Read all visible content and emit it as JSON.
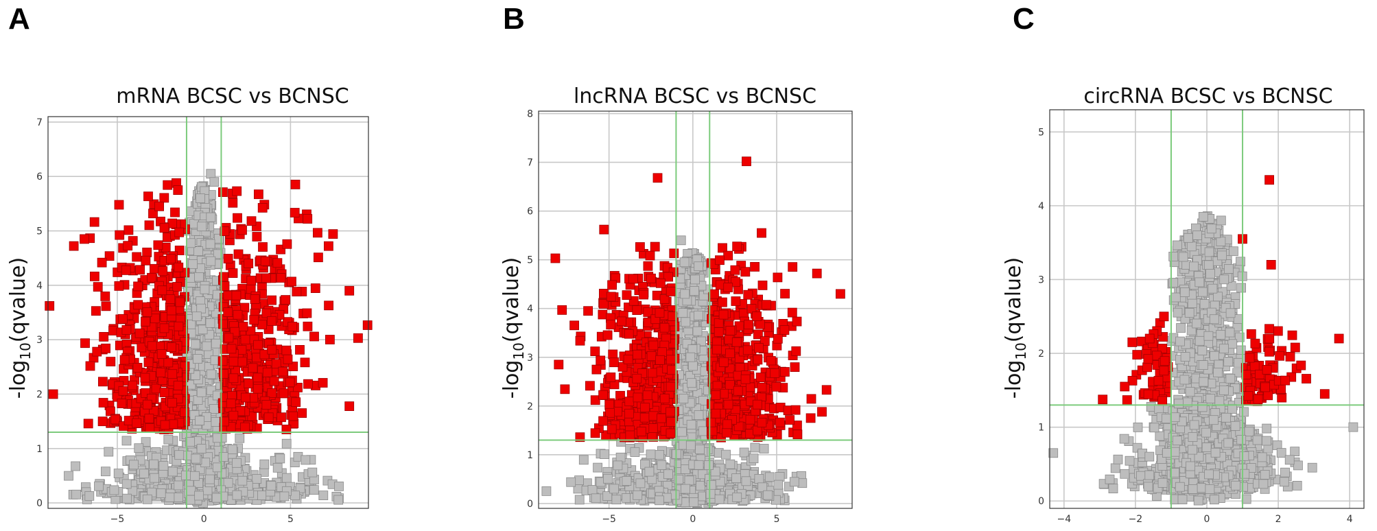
{
  "panels": [
    {
      "letter": "A"
    },
    {
      "letter": "B"
    },
    {
      "letter": "C"
    }
  ],
  "colors": {
    "significant": "#ee0000",
    "not_significant": "#bdbdbd",
    "threshold_lines": "#7ccb7c",
    "grid": "#c8c8c8"
  },
  "chart_data": [
    {
      "type": "scatter",
      "title": "mRNA BCSC vs BCNSC",
      "ylabel_prefix": "-log",
      "ylabel_sub": "10",
      "ylabel_suffix": "(qvalue)",
      "xlim": [
        -9,
        9.5
      ],
      "ylim": [
        -0.1,
        7.1
      ],
      "xticks": [
        -5,
        0,
        5
      ],
      "yticks": [
        0,
        1,
        2,
        3,
        4,
        5,
        6,
        7
      ],
      "grid": true,
      "fc_threshold": [
        -1,
        1
      ],
      "q_threshold": 1.3,
      "point_counts": {
        "significant": 850,
        "not_significant": 1100
      },
      "x_spread": 5.5,
      "y_max": 6.0,
      "highlighted_points": [
        {
          "x": -8.7,
          "y": 2.0,
          "sig": true
        },
        {
          "x": 8.9,
          "y": 3.03,
          "sig": true
        },
        {
          "x": -6.9,
          "y": 4.85,
          "sig": true
        },
        {
          "x": -4.9,
          "y": 5.48,
          "sig": true
        },
        {
          "x": -1.5,
          "y": 5.75,
          "sig": true
        },
        {
          "x": 1.9,
          "y": 5.73,
          "sig": true
        },
        {
          "x": 7.2,
          "y": 4.72,
          "sig": true
        },
        {
          "x": 8.4,
          "y": 3.9,
          "sig": true
        },
        {
          "x": 0.4,
          "y": 6.05,
          "sig": false
        },
        {
          "x": 0.6,
          "y": 5.9,
          "sig": false
        },
        {
          "x": 0.4,
          "y": 5.25,
          "sig": false
        }
      ]
    },
    {
      "type": "scatter",
      "title": "lncRNA BCSC vs BCNSC",
      "ylabel_prefix": "-log",
      "ylabel_sub": "10",
      "ylabel_suffix": "(qvalue)",
      "xlim": [
        -9.2,
        9.5
      ],
      "ylim": [
        -0.1,
        8.05
      ],
      "xticks": [
        -5,
        0,
        5
      ],
      "yticks": [
        0,
        1,
        2,
        3,
        4,
        5,
        6,
        7,
        8
      ],
      "grid": true,
      "fc_threshold": [
        -1,
        1
      ],
      "q_threshold": 1.3,
      "point_counts": {
        "significant": 900,
        "not_significant": 1100
      },
      "x_spread": 5.0,
      "y_max": 5.4,
      "highlighted_points": [
        {
          "x": -8.2,
          "y": 5.03,
          "sig": true
        },
        {
          "x": -8.0,
          "y": 2.85,
          "sig": true
        },
        {
          "x": -7.8,
          "y": 3.97,
          "sig": true
        },
        {
          "x": -2.1,
          "y": 6.68,
          "sig": true
        },
        {
          "x": 3.2,
          "y": 7.02,
          "sig": true
        },
        {
          "x": 8.8,
          "y": 4.3,
          "sig": true
        },
        {
          "x": 7.4,
          "y": 4.72,
          "sig": true
        },
        {
          "x": -5.3,
          "y": 5.62,
          "sig": true
        },
        {
          "x": 4.1,
          "y": 5.55,
          "sig": true
        },
        {
          "x": -0.7,
          "y": 5.4,
          "sig": false
        },
        {
          "x": -0.5,
          "y": 4.95,
          "sig": false
        }
      ]
    },
    {
      "type": "scatter",
      "title": "circRNA BCSC vs BCNSC",
      "ylabel_prefix": "-log",
      "ylabel_sub": "10",
      "ylabel_suffix": "(qvalue)",
      "xlim": [
        -4.4,
        4.4
      ],
      "ylim": [
        -0.1,
        5.3
      ],
      "xticks": [
        -4,
        -2,
        0,
        2,
        4
      ],
      "yticks": [
        0,
        1,
        2,
        3,
        4,
        5
      ],
      "grid": true,
      "fc_threshold": [
        -1,
        1
      ],
      "q_threshold": 1.3,
      "point_counts": {
        "significant": 150,
        "not_significant": 1500
      },
      "x_spread": 1.8,
      "y_max": 3.9,
      "highlighted_points": [
        {
          "x": 1.75,
          "y": 4.35,
          "sig": true
        },
        {
          "x": 1.0,
          "y": 3.55,
          "sig": true
        },
        {
          "x": 1.8,
          "y": 3.2,
          "sig": true
        },
        {
          "x": 3.7,
          "y": 2.2,
          "sig": true
        },
        {
          "x": -1.6,
          "y": 2.2,
          "sig": true
        },
        {
          "x": -1.2,
          "y": 2.5,
          "sig": true
        },
        {
          "x": -2.3,
          "y": 1.55,
          "sig": true
        },
        {
          "x": 3.3,
          "y": 1.45,
          "sig": true
        },
        {
          "x": -0.1,
          "y": 3.85,
          "sig": false
        },
        {
          "x": 0.4,
          "y": 3.8,
          "sig": false
        },
        {
          "x": -4.3,
          "y": 0.65,
          "sig": false
        },
        {
          "x": 4.1,
          "y": 1.0,
          "sig": false
        }
      ]
    }
  ]
}
